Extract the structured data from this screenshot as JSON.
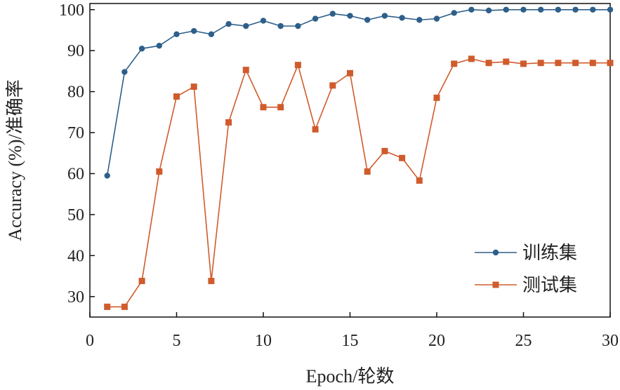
{
  "chart_data": {
    "type": "line",
    "xlabel": "Epoch/轮数",
    "ylabel": "Accuracy (%)/准确率",
    "xlim": [
      0,
      30
    ],
    "ylim": [
      25,
      101.5
    ],
    "xticks": [
      0,
      5,
      10,
      15,
      20,
      25,
      30
    ],
    "yticks": [
      30,
      40,
      50,
      60,
      70,
      80,
      90,
      100
    ],
    "grid": false,
    "legend_position": "bottom-right",
    "x": [
      1,
      2,
      3,
      4,
      5,
      6,
      7,
      8,
      9,
      10,
      11,
      12,
      13,
      14,
      15,
      16,
      17,
      18,
      19,
      20,
      21,
      22,
      23,
      24,
      25,
      26,
      27,
      28,
      29,
      30
    ],
    "series": [
      {
        "name": "训练集",
        "color": "#2e5f8a",
        "marker": "circle",
        "values": [
          59.5,
          84.8,
          90.5,
          91.2,
          94.0,
          94.8,
          94.0,
          96.5,
          96.0,
          97.3,
          96.0,
          96.0,
          97.8,
          99.0,
          98.5,
          97.5,
          98.5,
          98.0,
          97.5,
          97.8,
          99.2,
          100.0,
          99.8,
          100.0,
          100.0,
          100.0,
          100.0,
          100.0,
          100.0,
          100.0
        ]
      },
      {
        "name": "测试集",
        "color": "#d05b2c",
        "marker": "square",
        "values": [
          27.5,
          27.5,
          33.8,
          60.5,
          78.8,
          81.2,
          33.8,
          72.5,
          85.3,
          76.2,
          76.2,
          86.5,
          70.8,
          81.5,
          84.5,
          60.5,
          65.5,
          63.8,
          58.3,
          78.5,
          86.8,
          88.0,
          87.0,
          87.3,
          86.8,
          87.0,
          87.0,
          87.0,
          87.0,
          87.0
        ]
      }
    ]
  }
}
